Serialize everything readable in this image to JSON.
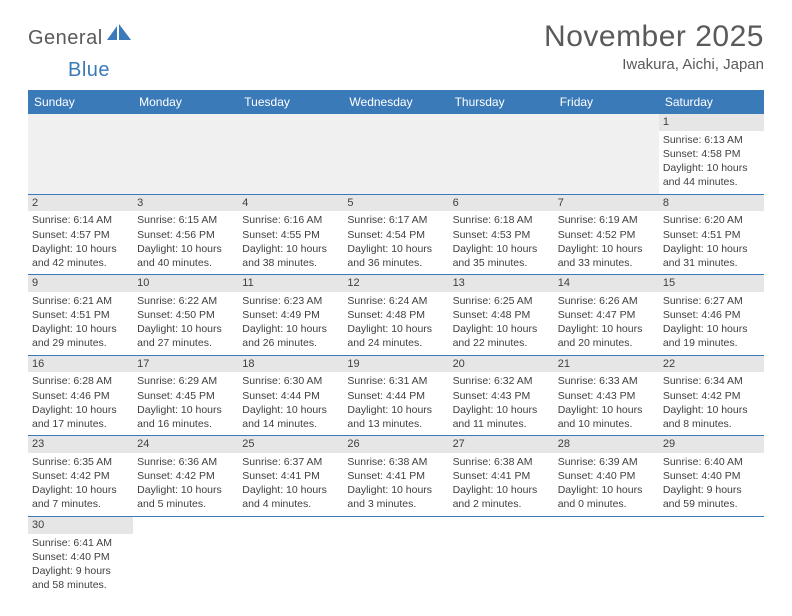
{
  "logo": {
    "text1": "General",
    "text2": "Blue"
  },
  "title": "November 2025",
  "location": "Iwakura, Aichi, Japan",
  "header_bg": "#3b7ab8",
  "daynum_bg": "#e6e6e6",
  "weekday_labels": [
    "Sunday",
    "Monday",
    "Tuesday",
    "Wednesday",
    "Thursday",
    "Friday",
    "Saturday"
  ],
  "weeks": [
    [
      {
        "day": "",
        "sunrise": "",
        "sunset": "",
        "daylight": ""
      },
      {
        "day": "",
        "sunrise": "",
        "sunset": "",
        "daylight": ""
      },
      {
        "day": "",
        "sunrise": "",
        "sunset": "",
        "daylight": ""
      },
      {
        "day": "",
        "sunrise": "",
        "sunset": "",
        "daylight": ""
      },
      {
        "day": "",
        "sunrise": "",
        "sunset": "",
        "daylight": ""
      },
      {
        "day": "",
        "sunrise": "",
        "sunset": "",
        "daylight": ""
      },
      {
        "day": "1",
        "sunrise": "Sunrise: 6:13 AM",
        "sunset": "Sunset: 4:58 PM",
        "daylight": "Daylight: 10 hours and 44 minutes."
      }
    ],
    [
      {
        "day": "2",
        "sunrise": "Sunrise: 6:14 AM",
        "sunset": "Sunset: 4:57 PM",
        "daylight": "Daylight: 10 hours and 42 minutes."
      },
      {
        "day": "3",
        "sunrise": "Sunrise: 6:15 AM",
        "sunset": "Sunset: 4:56 PM",
        "daylight": "Daylight: 10 hours and 40 minutes."
      },
      {
        "day": "4",
        "sunrise": "Sunrise: 6:16 AM",
        "sunset": "Sunset: 4:55 PM",
        "daylight": "Daylight: 10 hours and 38 minutes."
      },
      {
        "day": "5",
        "sunrise": "Sunrise: 6:17 AM",
        "sunset": "Sunset: 4:54 PM",
        "daylight": "Daylight: 10 hours and 36 minutes."
      },
      {
        "day": "6",
        "sunrise": "Sunrise: 6:18 AM",
        "sunset": "Sunset: 4:53 PM",
        "daylight": "Daylight: 10 hours and 35 minutes."
      },
      {
        "day": "7",
        "sunrise": "Sunrise: 6:19 AM",
        "sunset": "Sunset: 4:52 PM",
        "daylight": "Daylight: 10 hours and 33 minutes."
      },
      {
        "day": "8",
        "sunrise": "Sunrise: 6:20 AM",
        "sunset": "Sunset: 4:51 PM",
        "daylight": "Daylight: 10 hours and 31 minutes."
      }
    ],
    [
      {
        "day": "9",
        "sunrise": "Sunrise: 6:21 AM",
        "sunset": "Sunset: 4:51 PM",
        "daylight": "Daylight: 10 hours and 29 minutes."
      },
      {
        "day": "10",
        "sunrise": "Sunrise: 6:22 AM",
        "sunset": "Sunset: 4:50 PM",
        "daylight": "Daylight: 10 hours and 27 minutes."
      },
      {
        "day": "11",
        "sunrise": "Sunrise: 6:23 AM",
        "sunset": "Sunset: 4:49 PM",
        "daylight": "Daylight: 10 hours and 26 minutes."
      },
      {
        "day": "12",
        "sunrise": "Sunrise: 6:24 AM",
        "sunset": "Sunset: 4:48 PM",
        "daylight": "Daylight: 10 hours and 24 minutes."
      },
      {
        "day": "13",
        "sunrise": "Sunrise: 6:25 AM",
        "sunset": "Sunset: 4:48 PM",
        "daylight": "Daylight: 10 hours and 22 minutes."
      },
      {
        "day": "14",
        "sunrise": "Sunrise: 6:26 AM",
        "sunset": "Sunset: 4:47 PM",
        "daylight": "Daylight: 10 hours and 20 minutes."
      },
      {
        "day": "15",
        "sunrise": "Sunrise: 6:27 AM",
        "sunset": "Sunset: 4:46 PM",
        "daylight": "Daylight: 10 hours and 19 minutes."
      }
    ],
    [
      {
        "day": "16",
        "sunrise": "Sunrise: 6:28 AM",
        "sunset": "Sunset: 4:46 PM",
        "daylight": "Daylight: 10 hours and 17 minutes."
      },
      {
        "day": "17",
        "sunrise": "Sunrise: 6:29 AM",
        "sunset": "Sunset: 4:45 PM",
        "daylight": "Daylight: 10 hours and 16 minutes."
      },
      {
        "day": "18",
        "sunrise": "Sunrise: 6:30 AM",
        "sunset": "Sunset: 4:44 PM",
        "daylight": "Daylight: 10 hours and 14 minutes."
      },
      {
        "day": "19",
        "sunrise": "Sunrise: 6:31 AM",
        "sunset": "Sunset: 4:44 PM",
        "daylight": "Daylight: 10 hours and 13 minutes."
      },
      {
        "day": "20",
        "sunrise": "Sunrise: 6:32 AM",
        "sunset": "Sunset: 4:43 PM",
        "daylight": "Daylight: 10 hours and 11 minutes."
      },
      {
        "day": "21",
        "sunrise": "Sunrise: 6:33 AM",
        "sunset": "Sunset: 4:43 PM",
        "daylight": "Daylight: 10 hours and 10 minutes."
      },
      {
        "day": "22",
        "sunrise": "Sunrise: 6:34 AM",
        "sunset": "Sunset: 4:42 PM",
        "daylight": "Daylight: 10 hours and 8 minutes."
      }
    ],
    [
      {
        "day": "23",
        "sunrise": "Sunrise: 6:35 AM",
        "sunset": "Sunset: 4:42 PM",
        "daylight": "Daylight: 10 hours and 7 minutes."
      },
      {
        "day": "24",
        "sunrise": "Sunrise: 6:36 AM",
        "sunset": "Sunset: 4:42 PM",
        "daylight": "Daylight: 10 hours and 5 minutes."
      },
      {
        "day": "25",
        "sunrise": "Sunrise: 6:37 AM",
        "sunset": "Sunset: 4:41 PM",
        "daylight": "Daylight: 10 hours and 4 minutes."
      },
      {
        "day": "26",
        "sunrise": "Sunrise: 6:38 AM",
        "sunset": "Sunset: 4:41 PM",
        "daylight": "Daylight: 10 hours and 3 minutes."
      },
      {
        "day": "27",
        "sunrise": "Sunrise: 6:38 AM",
        "sunset": "Sunset: 4:41 PM",
        "daylight": "Daylight: 10 hours and 2 minutes."
      },
      {
        "day": "28",
        "sunrise": "Sunrise: 6:39 AM",
        "sunset": "Sunset: 4:40 PM",
        "daylight": "Daylight: 10 hours and 0 minutes."
      },
      {
        "day": "29",
        "sunrise": "Sunrise: 6:40 AM",
        "sunset": "Sunset: 4:40 PM",
        "daylight": "Daylight: 9 hours and 59 minutes."
      }
    ],
    [
      {
        "day": "30",
        "sunrise": "Sunrise: 6:41 AM",
        "sunset": "Sunset: 4:40 PM",
        "daylight": "Daylight: 9 hours and 58 minutes."
      },
      {
        "day": "",
        "sunrise": "",
        "sunset": "",
        "daylight": ""
      },
      {
        "day": "",
        "sunrise": "",
        "sunset": "",
        "daylight": ""
      },
      {
        "day": "",
        "sunrise": "",
        "sunset": "",
        "daylight": ""
      },
      {
        "day": "",
        "sunrise": "",
        "sunset": "",
        "daylight": ""
      },
      {
        "day": "",
        "sunrise": "",
        "sunset": "",
        "daylight": ""
      },
      {
        "day": "",
        "sunrise": "",
        "sunset": "",
        "daylight": ""
      }
    ]
  ]
}
